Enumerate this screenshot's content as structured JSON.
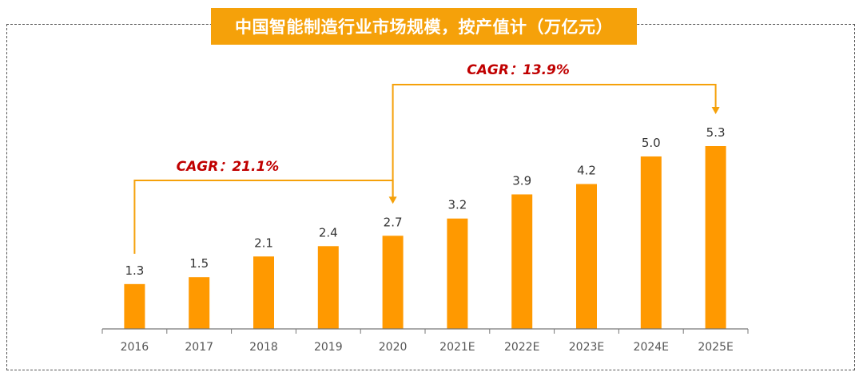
{
  "chart_data": {
    "type": "bar",
    "title": "中国智能制造行业市场规模，按产值计（万亿元）",
    "categories": [
      "2016",
      "2017",
      "2018",
      "2019",
      "2020",
      "2021E",
      "2022E",
      "2023E",
      "2024E",
      "2025E"
    ],
    "values": [
      1.3,
      1.5,
      2.1,
      2.4,
      2.7,
      3.2,
      3.9,
      4.2,
      5.0,
      5.3
    ],
    "value_labels": [
      "1.3",
      "1.5",
      "2.1",
      "2.4",
      "2.7",
      "3.2",
      "3.9",
      "4.2",
      "5.0",
      "5.3"
    ],
    "ylim": [
      0,
      5.3
    ],
    "grid": false,
    "bar_color": "#ff9900",
    "annotations": [
      {
        "text": "CAGR：21.1%",
        "from": "2016",
        "to": "2020",
        "color": "#c00000"
      },
      {
        "text": "CAGR：13.9%",
        "from": "2020",
        "to": "2025E",
        "color": "#c00000"
      }
    ],
    "connector_color": "#f5a10a"
  }
}
